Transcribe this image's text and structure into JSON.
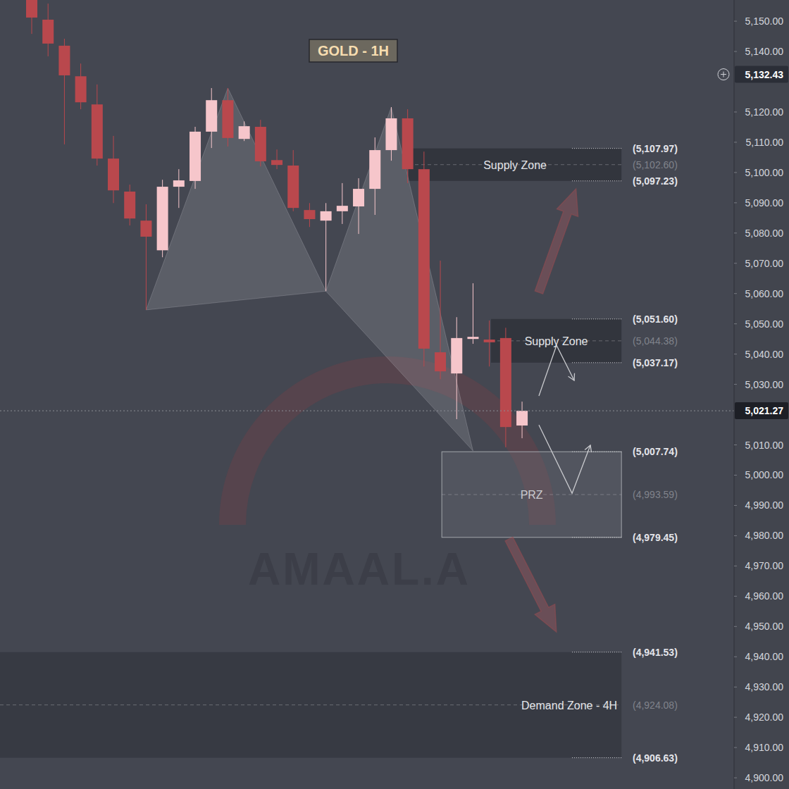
{
  "chart_data": {
    "type": "candlestick",
    "title": "GOLD - 1H",
    "x": [
      0,
      1,
      2,
      3,
      4,
      5,
      6,
      7,
      8,
      9,
      10,
      11,
      12,
      13,
      14,
      15,
      16,
      17,
      18,
      19,
      20,
      21,
      22,
      23,
      24,
      25,
      26,
      27,
      28,
      29,
      30
    ],
    "open": [
      5158.0,
      5150.5,
      5141.9,
      5131.8,
      5122.5,
      5104.6,
      5093.7,
      5084.1,
      5074.3,
      5095.3,
      5097.2,
      5113.5,
      5123.9,
      5111.1,
      5115.1,
      5104.1,
      5102.3,
      5087.6,
      5084.1,
      5087.2,
      5088.8,
      5094.6,
      5107.4,
      5117.9,
      5101.1,
      5040.6,
      5033.6,
      5045.0,
      5044.8,
      5045.3,
      5016.4
    ],
    "high": [
      5160.0,
      5155.8,
      5144.2,
      5136.0,
      5129.1,
      5112.1,
      5096.0,
      5089.5,
      5097.6,
      5101.1,
      5115.1,
      5127.9,
      5127.9,
      5116.9,
      5117.4,
      5107.6,
      5107.4,
      5089.9,
      5089.9,
      5096.5,
      5098.1,
      5111.6,
      5121.6,
      5120.9,
      5106.9,
      5070.9,
      5052.2,
      5063.4,
      5051.1,
      5048.7,
      5024.3
    ],
    "low": [
      5145.8,
      5138.4,
      5109.3,
      5120.9,
      5102.3,
      5089.9,
      5082.5,
      5054.6,
      5072.0,
      5088.3,
      5094.6,
      5108.1,
      5108.6,
      5110.4,
      5102.0,
      5101.1,
      5087.2,
      5082.0,
      5060.8,
      5083.0,
      5079.7,
      5086.0,
      5103.9,
      5096.5,
      5035.9,
      5031.7,
      5018.5,
      5043.4,
      5035.9,
      5009.2,
      5012.2
    ],
    "close": [
      5151.2,
      5142.6,
      5132.1,
      5123.2,
      5104.6,
      5094.1,
      5084.8,
      5078.8,
      5095.3,
      5097.4,
      5113.5,
      5123.9,
      5111.4,
      5115.3,
      5103.7,
      5102.5,
      5088.3,
      5084.6,
      5087.2,
      5089.0,
      5094.6,
      5107.4,
      5117.9,
      5101.1,
      5041.8,
      5034.3,
      5045.3,
      5045.7,
      5043.9,
      5015.9,
      5021.27
    ],
    "xlim": [
      -1.94,
      42.97
    ],
    "ylim": [
      4896.3,
      5157.0
    ],
    "yticks": [
      {
        "value": 4900,
        "label": "4,900.00"
      },
      {
        "value": 4910,
        "label": "4,910.00"
      },
      {
        "value": 4920,
        "label": "4,920.00"
      },
      {
        "value": 4930,
        "label": "4,930.00"
      },
      {
        "value": 4940,
        "label": "4,940.00"
      },
      {
        "value": 4950,
        "label": "4,950.00"
      },
      {
        "value": 4960,
        "label": "4,960.00"
      },
      {
        "value": 4970,
        "label": "4,970.00"
      },
      {
        "value": 4980,
        "label": "4,980.00"
      },
      {
        "value": 4990,
        "label": "4,990.00"
      },
      {
        "value": 5000,
        "label": "5,000.00"
      },
      {
        "value": 5010,
        "label": "5,010.00"
      },
      {
        "value": 5030,
        "label": "5,030.00"
      },
      {
        "value": 5040,
        "label": "5,040.00"
      },
      {
        "value": 5050,
        "label": "5,050.00"
      },
      {
        "value": 5060,
        "label": "5,060.00"
      },
      {
        "value": 5070,
        "label": "5,070.00"
      },
      {
        "value": 5080,
        "label": "5,080.00"
      },
      {
        "value": 5090,
        "label": "5,090.00"
      },
      {
        "value": 5100,
        "label": "5,100.00"
      },
      {
        "value": 5110,
        "label": "5,110.00"
      },
      {
        "value": 5120,
        "label": "5,120.00"
      },
      {
        "value": 5140,
        "label": "5,140.00"
      },
      {
        "value": 5150,
        "label": "5,150.00"
      }
    ],
    "tick_labels": "y",
    "grid": false,
    "last_price": {
      "value": 5021.27,
      "label": "5,021.27"
    },
    "cursor_price": {
      "value": 5132.43,
      "label": "5,132.43"
    },
    "zones": [
      {
        "name": "Supply Zone",
        "x": [
          23.06,
          36.08
        ],
        "top": {
          "value": 5107.97,
          "label": "(5,107.97)"
        },
        "mid": {
          "value": 5102.6,
          "label": "(5,102.60)"
        },
        "bottom": {
          "value": 5097.23,
          "label": "(5,097.23)"
        }
      },
      {
        "name": "Supply Zone",
        "x": [
          28.1,
          36.08
        ],
        "top": {
          "value": 5051.6,
          "label": "(5,051.60)"
        },
        "mid": {
          "value": 5044.38,
          "label": "(5,044.38)"
        },
        "bottom": {
          "value": 5037.17,
          "label": "(5,037.17)"
        }
      },
      {
        "name": "PRZ",
        "x": [
          25.09,
          36.08
        ],
        "top": {
          "value": 5007.74,
          "label": "(5,007.74)"
        },
        "mid": {
          "value": 4993.59,
          "label": "(4,993.59)"
        },
        "bottom": {
          "value": 4979.45,
          "label": "(4,979.45)"
        }
      },
      {
        "name": "Demand Zone - 4H",
        "x": [
          -1.94,
          36.08
        ],
        "top": {
          "value": 4941.53,
          "label": "(4,941.53)"
        },
        "mid": {
          "value": 4924.08,
          "label": "(4,924.08)"
        },
        "bottom": {
          "value": 4906.63,
          "label": "(4,906.63)"
        }
      }
    ],
    "pattern": {
      "x": [
        7,
        12,
        18,
        22,
        27
      ],
      "values": [
        5054.6,
        5127.9,
        5060.8,
        5121.6,
        5008.0
      ]
    },
    "arrows": [
      {
        "x": [
          31.03,
          33.3
        ],
        "values": [
          5060.4,
          5094.6
        ]
      },
      {
        "x": [
          29.2,
          32.1
        ],
        "values": [
          4978.9,
          4948.2
        ]
      }
    ],
    "paths": [
      {
        "x": [
          31.03,
          32.11,
          33.19
        ],
        "values": [
          5026.2,
          5042.9,
          5031.3
        ]
      },
      {
        "x": [
          31.03,
          33.06,
          34.18
        ],
        "values": [
          5016.6,
          4994.0,
          5009.9
        ]
      }
    ],
    "watermark": "AMAAL.A"
  }
}
